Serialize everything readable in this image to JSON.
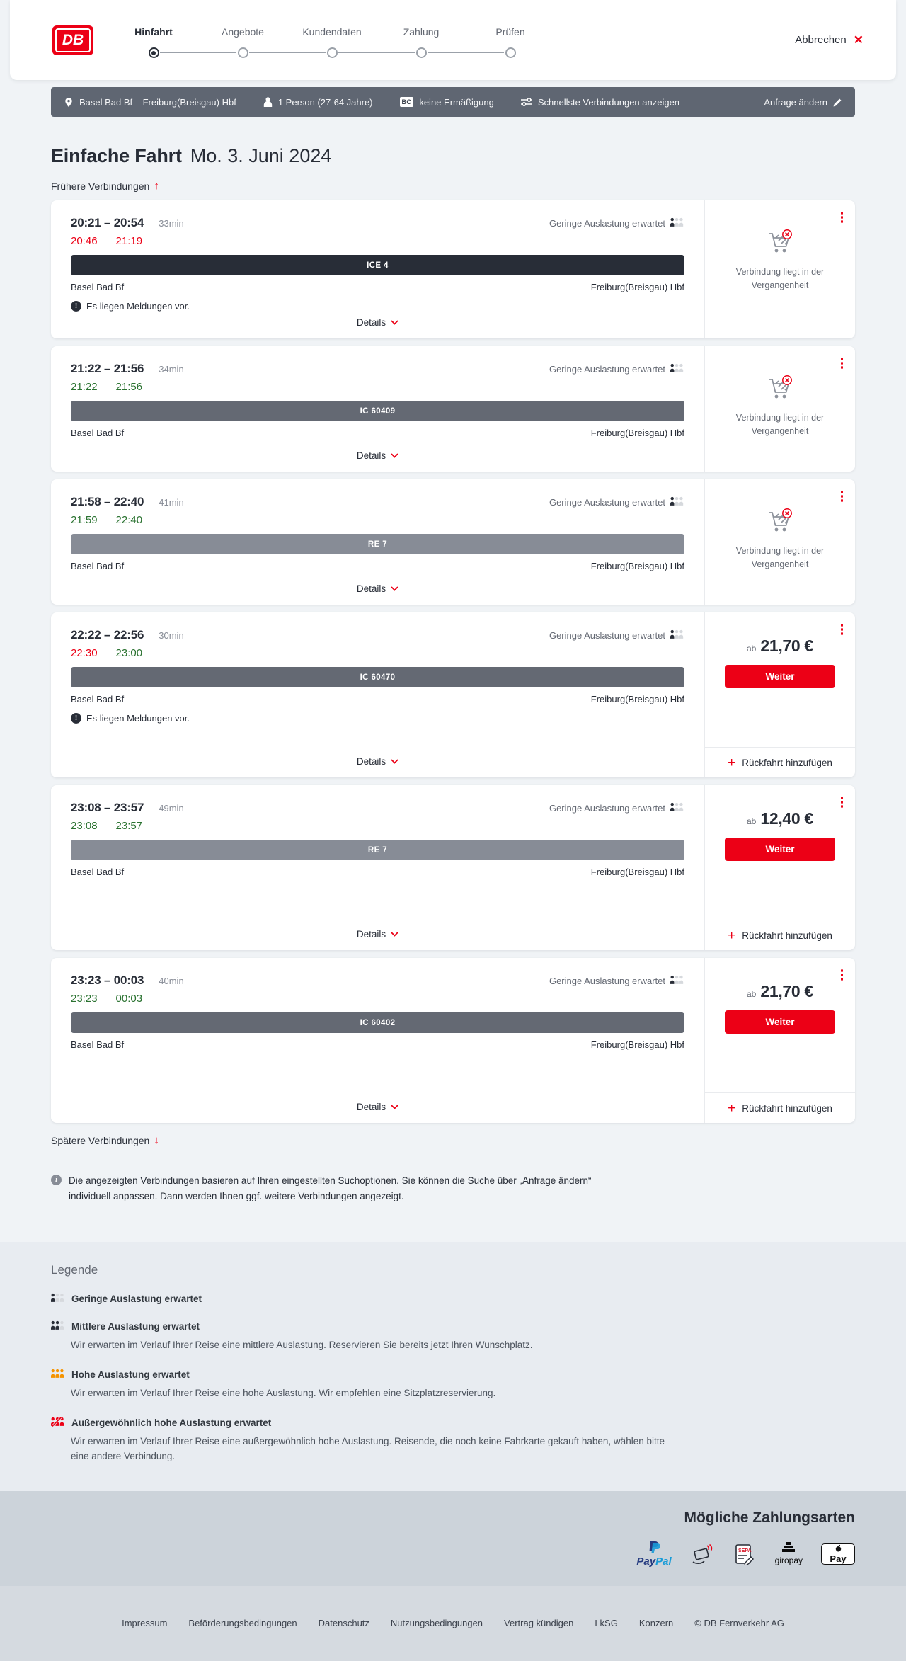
{
  "colors": {
    "brand_red": "#ec0016",
    "text_dark": "#282d37",
    "text_gray": "#646973",
    "ontime_green": "#2a7230",
    "delayed_red": "#ec0016",
    "summary_bar_bg": "#5f6672",
    "occupancy_orange": "#f59300"
  },
  "icons": {
    "logo": "db-logo",
    "close": "close-x-icon",
    "location": "map-pin-icon",
    "passenger": "person-icon",
    "bahncard": "bc-badge",
    "fastest": "sliders-icon",
    "edit": "pencil-icon",
    "earlier": "arrow-up-icon",
    "later": "arrow-down-icon",
    "occupancy": "occupancy-persons-icon",
    "messages": "exclamation-circle-icon",
    "details": "chevron-down-icon",
    "menu": "kebab-menu-icon",
    "past": "cart-crossed-icon",
    "add": "plus-icon",
    "note": "info-circle-icon"
  },
  "header": {
    "logo_text": "DB",
    "cancel_label": "Abbrechen",
    "close_glyph": "✕",
    "steps": [
      {
        "label": "Hinfahrt",
        "active": true
      },
      {
        "label": "Angebote",
        "active": false
      },
      {
        "label": "Kundendaten",
        "active": false
      },
      {
        "label": "Zahlung",
        "active": false
      },
      {
        "label": "Prüfen",
        "active": false
      }
    ]
  },
  "summary_bar": {
    "route": "Basel Bad Bf – Freiburg(Breisgau) Hbf",
    "passengers": "1 Person (27-64 Jahre)",
    "bahncard_badge": "BC",
    "discount": "keine Ermäßigung",
    "fastest_toggle": "Schnellste Verbindungen anzeigen",
    "change_request": "Anfrage ändern"
  },
  "results": {
    "title": "Einfache Fahrt",
    "date": "Mo. 3. Juni 2024",
    "earlier_link": "Frühere Verbindungen",
    "earlier_glyph": "↑",
    "later_link": "Spätere Verbindungen",
    "later_glyph": "↓",
    "info_note": "Die angezeigten Verbindungen basieren auf Ihren eingestellten Suchoptionen. Sie können die Suche über „Anfrage ändern“ individuell anpassen. Dann werden Ihnen ggf. weitere Verbindungen angezeigt."
  },
  "connections": [
    {
      "time_range": "20:21 – 20:54",
      "duration": "33min",
      "occupancy": "Geringe Auslastung erwartet",
      "dep_actual": "20:46",
      "arr_actual": "21:19",
      "dep_status": "delayed",
      "arr_status": "delayed",
      "train": "ICE 4",
      "train_color": "#282d37",
      "from": "Basel Bad Bf",
      "to": "Freiburg(Breisgau) Hbf",
      "messages": "Es liegen Meldungen vor.",
      "details_label": "Details",
      "side": {
        "type": "past",
        "text": "Verbindung liegt in der Vergangenheit"
      }
    },
    {
      "time_range": "21:22 – 21:56",
      "duration": "34min",
      "occupancy": "Geringe Auslastung erwartet",
      "dep_actual": "21:22",
      "arr_actual": "21:56",
      "dep_status": "ontime",
      "arr_status": "ontime",
      "train": "IC 60409",
      "train_color": "#646973",
      "from": "Basel Bad Bf",
      "to": "Freiburg(Breisgau) Hbf",
      "messages": "",
      "details_label": "Details",
      "side": {
        "type": "past",
        "text": "Verbindung liegt in der Vergangenheit"
      }
    },
    {
      "time_range": "21:58 – 22:40",
      "duration": "41min",
      "occupancy": "Geringe Auslastung erwartet",
      "dep_actual": "21:59",
      "arr_actual": "22:40",
      "dep_status": "ontime",
      "arr_status": "ontime",
      "train": "RE 7",
      "train_color": "#878c96",
      "from": "Basel Bad Bf",
      "to": "Freiburg(Breisgau) Hbf",
      "messages": "",
      "details_label": "Details",
      "side": {
        "type": "past",
        "text": "Verbindung liegt in der Vergangenheit"
      }
    },
    {
      "time_range": "22:22 – 22:56",
      "duration": "30min",
      "occupancy": "Geringe Auslastung erwartet",
      "dep_actual": "22:30",
      "arr_actual": "23:00",
      "dep_status": "delayed",
      "arr_status": "ontime",
      "train": "IC 60470",
      "train_color": "#646973",
      "from": "Basel Bad Bf",
      "to": "Freiburg(Breisgau) Hbf",
      "messages": "Es liegen Meldungen vor.",
      "details_label": "Details",
      "side": {
        "type": "price",
        "from_label": "ab",
        "price": "21,70 €",
        "cta": "Weiter",
        "add_return": "Rückfahrt hinzufügen"
      }
    },
    {
      "time_range": "23:08 – 23:57",
      "duration": "49min",
      "occupancy": "Geringe Auslastung erwartet",
      "dep_actual": "23:08",
      "arr_actual": "23:57",
      "dep_status": "ontime",
      "arr_status": "ontime",
      "train": "RE 7",
      "train_color": "#878c96",
      "from": "Basel Bad Bf",
      "to": "Freiburg(Breisgau) Hbf",
      "messages": "",
      "details_label": "Details",
      "side": {
        "type": "price",
        "from_label": "ab",
        "price": "12,40 €",
        "cta": "Weiter",
        "add_return": "Rückfahrt hinzufügen"
      }
    },
    {
      "time_range": "23:23 – 00:03",
      "duration": "40min",
      "occupancy": "Geringe Auslastung erwartet",
      "dep_actual": "23:23",
      "arr_actual": "00:03",
      "dep_status": "ontime",
      "arr_status": "ontime",
      "train": "IC 60402",
      "train_color": "#646973",
      "from": "Basel Bad Bf",
      "to": "Freiburg(Breisgau) Hbf",
      "messages": "",
      "details_label": "Details",
      "side": {
        "type": "price",
        "from_label": "ab",
        "price": "21,70 €",
        "cta": "Weiter",
        "add_return": "Rückfahrt hinzufügen"
      }
    }
  ],
  "legend": {
    "title": "Legende",
    "items": [
      {
        "variant": "low",
        "title": "Geringe Auslastung erwartet",
        "description": ""
      },
      {
        "variant": "mid",
        "title": "Mittlere Auslastung erwartet",
        "description": "Wir erwarten im Verlauf Ihrer Reise eine mittlere Auslastung. Reservieren Sie bereits jetzt Ihren Wunschplatz."
      },
      {
        "variant": "high",
        "title": "Hohe Auslastung erwartet",
        "description": "Wir erwarten im Verlauf Ihrer Reise eine hohe Auslastung. Wir empfehlen eine Sitzplatzreservierung."
      },
      {
        "variant": "extreme",
        "title": "Außergewöhnlich hohe Auslastung erwartet",
        "description": "Wir erwarten im Verlauf Ihrer Reise eine außergewöhnlich hohe Auslastung. Reisende, die noch keine Fahrkarte gekauft haben, wählen bitte eine andere Verbindung."
      }
    ]
  },
  "payment": {
    "title": "Mögliche Zahlungsarten",
    "methods": [
      {
        "name": "paypal",
        "label_bold": "Pay",
        "label_light": "Pal"
      },
      {
        "name": "credit-card",
        "label": ""
      },
      {
        "name": "sepa",
        "label": "SEPA"
      },
      {
        "name": "giropay",
        "label": "giropay"
      },
      {
        "name": "apple-pay",
        "label": "Pay"
      }
    ]
  },
  "footer": {
    "links": [
      "Impressum",
      "Beförderungsbedingungen",
      "Datenschutz",
      "Nutzungsbedingungen",
      "Vertrag kündigen",
      "LkSG",
      "Konzern"
    ],
    "copyright": "© DB Fernverkehr AG"
  }
}
